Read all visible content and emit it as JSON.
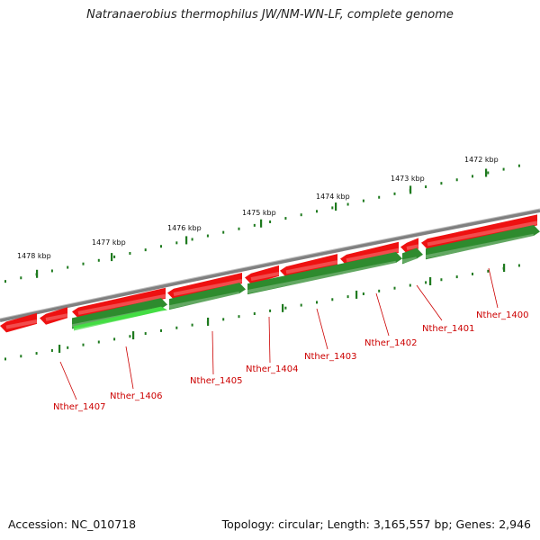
{
  "title": "Natranaerobius thermophilus JW/NM-WN-LF, complete genome",
  "footer": {
    "accession": "Accession: NC_010718",
    "summary": "Topology: circular; Length: 3,165,557 bp; Genes: 2,946"
  },
  "colors": {
    "backbone": "#808080",
    "forward_strand": "#ee1111",
    "reverse_strand": "#2e8b2e",
    "reverse_highlight": "#44dd44",
    "tick": "#1e7a1e",
    "label": "#cc0000"
  },
  "scale_labels": [
    "1472 kbp",
    "1473 kbp",
    "1474 kbp",
    "1475 kbp",
    "1476 kbp",
    "1477 kbp",
    "1478 kbp"
  ],
  "gene_labels": [
    "Nther_1400",
    "Nther_1401",
    "Nther_1402",
    "Nther_1403",
    "Nther_1404",
    "Nther_1405",
    "Nther_1406",
    "Nther_1407"
  ]
}
